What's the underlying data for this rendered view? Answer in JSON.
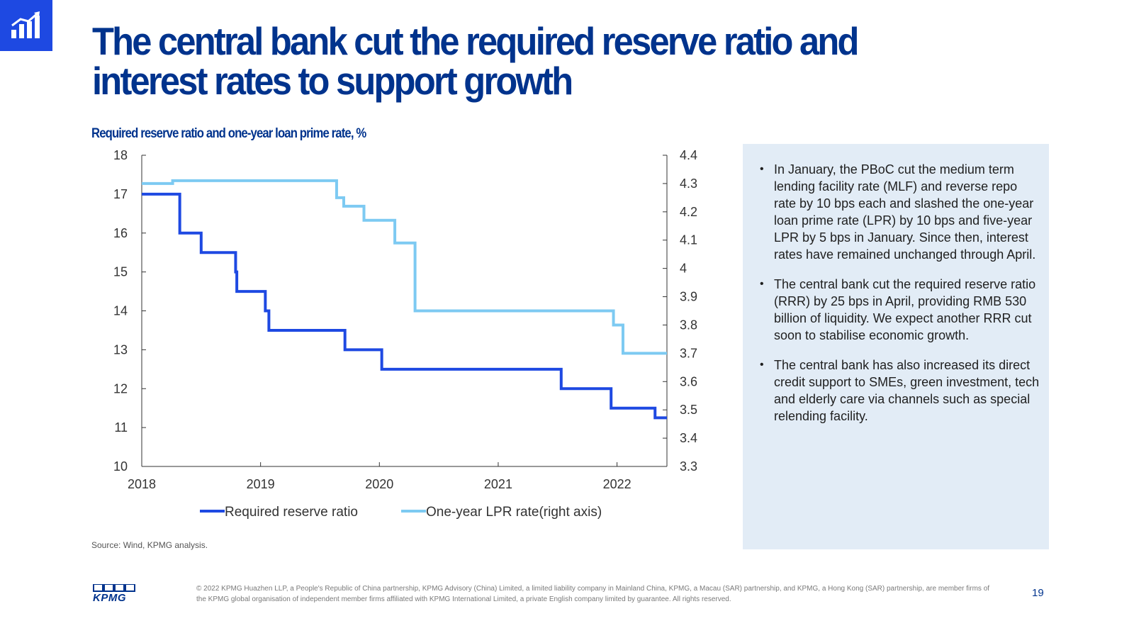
{
  "page": {
    "title": "The central bank cut the required reserve ratio and interest rates to support growth",
    "logo_icon": "bar-chart-growth-icon",
    "accent_color": "#1e49e2",
    "title_color": "#00338d"
  },
  "chart_data": {
    "type": "line",
    "title": "Required reserve ratio and one-year loan prime rate, %",
    "xlabel": "",
    "ylabel": "",
    "x_ticks": [
      "2018",
      "2019",
      "2020",
      "2021",
      "2022"
    ],
    "xlim": [
      2018.0,
      2022.42
    ],
    "ylim_left": [
      10,
      18
    ],
    "yticks_left": [
      "10",
      "11",
      "12",
      "13",
      "14",
      "15",
      "16",
      "17",
      "18"
    ],
    "ylim_right": [
      3.3,
      4.4
    ],
    "yticks_right": [
      "3.3",
      "3.4",
      "3.5",
      "3.6",
      "3.7",
      "3.8",
      "3.9",
      "4",
      "4.1",
      "4.2",
      "4.3",
      "4.4"
    ],
    "step": true,
    "grid": false,
    "legend_position": "bottom",
    "series": [
      {
        "name": "Required reserve ratio",
        "axis": "left",
        "color": "#1e49e2",
        "points": [
          [
            2018.0,
            17.0
          ],
          [
            2018.32,
            16.0
          ],
          [
            2018.5,
            15.5
          ],
          [
            2018.79,
            15.0
          ],
          [
            2018.8,
            14.5
          ],
          [
            2019.04,
            14.0
          ],
          [
            2019.07,
            13.5
          ],
          [
            2019.71,
            13.0
          ],
          [
            2020.02,
            12.5
          ],
          [
            2021.53,
            12.0
          ],
          [
            2021.95,
            11.5
          ],
          [
            2022.32,
            11.25
          ],
          [
            2022.42,
            11.25
          ]
        ]
      },
      {
        "name": "One-year LPR rate(right axis)",
        "axis": "right",
        "color": "#7dcaf2",
        "points": [
          [
            2018.0,
            4.3
          ],
          [
            2018.26,
            4.31
          ],
          [
            2019.64,
            4.25
          ],
          [
            2019.7,
            4.22
          ],
          [
            2019.87,
            4.17
          ],
          [
            2020.13,
            4.09
          ],
          [
            2020.3,
            3.85
          ],
          [
            2021.97,
            3.8
          ],
          [
            2022.05,
            3.7
          ],
          [
            2022.42,
            3.7
          ]
        ]
      }
    ]
  },
  "side_panel": {
    "bullets": [
      "In January, the PBoC cut the medium term lending facility rate (MLF) and reverse repo rate by 10 bps each and slashed the one-year loan prime rate (LPR) by 10 bps and five-year LPR by 5 bps in January. Since then, interest rates have remained unchanged through April.",
      "The central bank cut the required reserve ratio (RRR) by 25 bps in April, providing RMB 530 billion  of liquidity. We expect another RRR cut soon to stabilise economic growth.",
      "The central bank has also increased its direct credit support to SMEs, green investment, tech and elderly care via channels such as special relending facility."
    ]
  },
  "footer": {
    "source": "Source: Wind, KPMG analysis.",
    "logo_text": "KPMG",
    "copyright": "© 2022 KPMG Huazhen LLP, a People's Republic of China partnership, KPMG Advisory (China) Limited, a limited liability company in Mainland China, KPMG, a Macau (SAR) partnership, and KPMG, a Hong Kong (SAR) partnership, are member firms of the KPMG global organisation of independent member firms affiliated with KPMG International Limited, a private English company limited by guarantee. All rights reserved.",
    "page_number": "19"
  }
}
